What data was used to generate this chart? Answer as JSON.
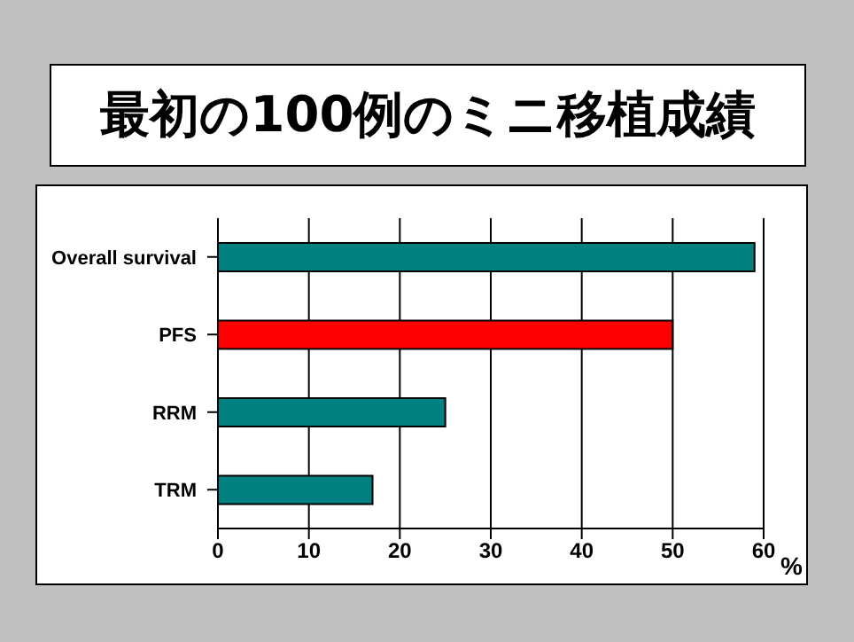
{
  "chart_data": {
    "type": "bar",
    "orientation": "horizontal",
    "title": "最初の100例のミニ移植成績",
    "xlabel": "%",
    "categories": [
      "Overall survival",
      "PFS",
      "RRM",
      "TRM"
    ],
    "values": [
      59,
      50,
      25,
      17
    ],
    "colors": [
      "#008080",
      "#ff0000",
      "#008080",
      "#008080"
    ],
    "xlim": [
      0,
      60
    ],
    "xticks": [
      0,
      10,
      20,
      30,
      40,
      50,
      60
    ],
    "grid": "x"
  }
}
